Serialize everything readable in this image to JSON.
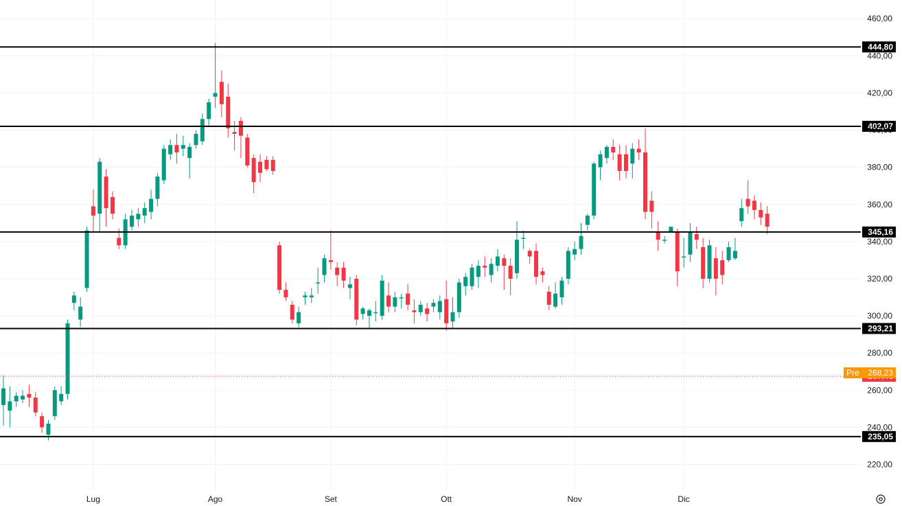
{
  "chart_data": {
    "type": "candlestick",
    "y_axis": {
      "position": "right",
      "ylim": [
        208,
        466
      ],
      "ticks": [
        "220,00",
        "240,00",
        "260,00",
        "280,00",
        "300,00",
        "320,00",
        "340,00",
        "360,00",
        "380,00",
        "400,00",
        "420,00",
        "440,00",
        "460,00"
      ],
      "tick_values": [
        220,
        240,
        260,
        280,
        300,
        320,
        340,
        360,
        380,
        400,
        420,
        440,
        460
      ]
    },
    "x_axis": {
      "month_labels": [
        {
          "label": "Lug",
          "index": 14
        },
        {
          "label": "Ago",
          "index": 33
        },
        {
          "label": "Set",
          "index": 51
        },
        {
          "label": "Ott",
          "index": 69
        },
        {
          "label": "Nov",
          "index": 89
        },
        {
          "label": "Dic",
          "index": 106
        }
      ]
    },
    "grid": true,
    "horizontal_levels": [
      {
        "value": 444.8,
        "label": "444,80"
      },
      {
        "value": 402.07,
        "label": "402,07"
      },
      {
        "value": 345.16,
        "label": "345,16"
      },
      {
        "value": 293.21,
        "label": "293,21"
      },
      {
        "value": 235.05,
        "label": "235,05"
      }
    ],
    "last_price": {
      "value": 267.46,
      "label": "267,46",
      "color": "#f23645"
    },
    "premarket": {
      "value": 268.23,
      "label": "268,23",
      "tag": "Pre",
      "color": "#ff9800"
    },
    "colors": {
      "up": "#089981",
      "down": "#f23645",
      "level": "#000000",
      "grid": "#f0f3fa",
      "text": "#131722"
    },
    "candles": [
      [
        252,
        261,
        241,
        268
      ],
      [
        249,
        254,
        240,
        262
      ],
      [
        254,
        257,
        251,
        259
      ],
      [
        255,
        257,
        253,
        260
      ],
      [
        258,
        256,
        251,
        263
      ],
      [
        256,
        248,
        246,
        259
      ],
      [
        246,
        240,
        237,
        248
      ],
      [
        236,
        242,
        233,
        244
      ],
      [
        246,
        260,
        244,
        262
      ],
      [
        254,
        258,
        252,
        262
      ],
      [
        258,
        296,
        255,
        298
      ],
      [
        307,
        311,
        303,
        313
      ],
      [
        298,
        305,
        294,
        310
      ],
      [
        315,
        346,
        313,
        348
      ],
      [
        359,
        354,
        345,
        368
      ],
      [
        355,
        383,
        345,
        385
      ],
      [
        375,
        358,
        348,
        379
      ],
      [
        364,
        355,
        352,
        367
      ],
      [
        342,
        338,
        336,
        347
      ],
      [
        338,
        352,
        336,
        355
      ],
      [
        348,
        354,
        346,
        357
      ],
      [
        352,
        355,
        348,
        358
      ],
      [
        354,
        358,
        350,
        361
      ],
      [
        356,
        363,
        352,
        368
      ],
      [
        363,
        375,
        359,
        377
      ],
      [
        373,
        390,
        371,
        392
      ],
      [
        387,
        392,
        384,
        395
      ],
      [
        392,
        388,
        382,
        398
      ],
      [
        390,
        392,
        386,
        397
      ],
      [
        385,
        391,
        374,
        393
      ],
      [
        392,
        398,
        390,
        400
      ],
      [
        394,
        406,
        392,
        409
      ],
      [
        406,
        415,
        402,
        417
      ],
      [
        418,
        420,
        412,
        447
      ],
      [
        426,
        414,
        407,
        432
      ],
      [
        418,
        401,
        396,
        425
      ],
      [
        399,
        398,
        389,
        405
      ],
      [
        405,
        397,
        385,
        407
      ],
      [
        396,
        381,
        380,
        398
      ],
      [
        385,
        372,
        366,
        387
      ],
      [
        383,
        377,
        372,
        387
      ],
      [
        384,
        379,
        378,
        386
      ],
      [
        384,
        378,
        376,
        386
      ],
      [
        338,
        314,
        312,
        340
      ],
      [
        314,
        310,
        308,
        318
      ],
      [
        306,
        298,
        296,
        308
      ],
      [
        296,
        302,
        294,
        305
      ],
      [
        310,
        311,
        306,
        313
      ],
      [
        310,
        311,
        307,
        315
      ],
      [
        318,
        318,
        312,
        326
      ],
      [
        322,
        331,
        318,
        333
      ],
      [
        330,
        329,
        325,
        346
      ],
      [
        326,
        322,
        316,
        329
      ],
      [
        326,
        319,
        315,
        329
      ],
      [
        315,
        317,
        309,
        321
      ],
      [
        320,
        298,
        295,
        322
      ],
      [
        301,
        304,
        298,
        305
      ],
      [
        300,
        303,
        293,
        304
      ],
      [
        302,
        302,
        297,
        308
      ],
      [
        300,
        319,
        298,
        322
      ],
      [
        311,
        305,
        302,
        318
      ],
      [
        305,
        310,
        302,
        313
      ],
      [
        310,
        310,
        304,
        312
      ],
      [
        312,
        306,
        303,
        317
      ],
      [
        303,
        302,
        296,
        309
      ],
      [
        302,
        306,
        300,
        308
      ],
      [
        304,
        301,
        297,
        307
      ],
      [
        305,
        307,
        302,
        309
      ],
      [
        302,
        308,
        298,
        311
      ],
      [
        309,
        296,
        292,
        319
      ],
      [
        297,
        302,
        293,
        310
      ],
      [
        302,
        318,
        299,
        320
      ],
      [
        316,
        321,
        311,
        323
      ],
      [
        316,
        326,
        314,
        328
      ],
      [
        321,
        327,
        315,
        330
      ],
      [
        327,
        326,
        321,
        332
      ],
      [
        322,
        328,
        318,
        331
      ],
      [
        327,
        332,
        324,
        336
      ],
      [
        331,
        327,
        314,
        333
      ],
      [
        327,
        320,
        311,
        331
      ],
      [
        323,
        341,
        320,
        351
      ],
      [
        342,
        342,
        336,
        346
      ],
      [
        335,
        332,
        328,
        336
      ],
      [
        335,
        321,
        317,
        339
      ],
      [
        324,
        322,
        318,
        326
      ],
      [
        313,
        306,
        303,
        316
      ],
      [
        305,
        312,
        304,
        318
      ],
      [
        310,
        319,
        306,
        321
      ],
      [
        320,
        335,
        317,
        337
      ],
      [
        333,
        336,
        330,
        340
      ],
      [
        336,
        343,
        333,
        350
      ],
      [
        349,
        354,
        346,
        355
      ],
      [
        354,
        382,
        352,
        383
      ],
      [
        380,
        387,
        373,
        389
      ],
      [
        385,
        391,
        382,
        392
      ],
      [
        391,
        388,
        384,
        395
      ],
      [
        387,
        378,
        373,
        392
      ],
      [
        387,
        378,
        374,
        392
      ],
      [
        382,
        390,
        374,
        393
      ],
      [
        390,
        388,
        384,
        395
      ],
      [
        388,
        356,
        352,
        401
      ],
      [
        362,
        356,
        347,
        367
      ],
      [
        345,
        341,
        335,
        351
      ],
      [
        341,
        341,
        339,
        343
      ],
      [
        345,
        348,
        345,
        348
      ],
      [
        345,
        324,
        316,
        347
      ],
      [
        332,
        332,
        326,
        342
      ],
      [
        333,
        345,
        329,
        350
      ],
      [
        344,
        341,
        336,
        348
      ],
      [
        337,
        320,
        315,
        342
      ],
      [
        320,
        338,
        318,
        341
      ],
      [
        331,
        320,
        311,
        337
      ],
      [
        330,
        322,
        317,
        335
      ],
      [
        330,
        337,
        329,
        340
      ],
      [
        331,
        335,
        330,
        342
      ],
      [
        351,
        358,
        348,
        363
      ],
      [
        363,
        359,
        355,
        373
      ],
      [
        362,
        357,
        352,
        365
      ],
      [
        357,
        353,
        349,
        361
      ],
      [
        355,
        348,
        344,
        359
      ]
    ]
  }
}
